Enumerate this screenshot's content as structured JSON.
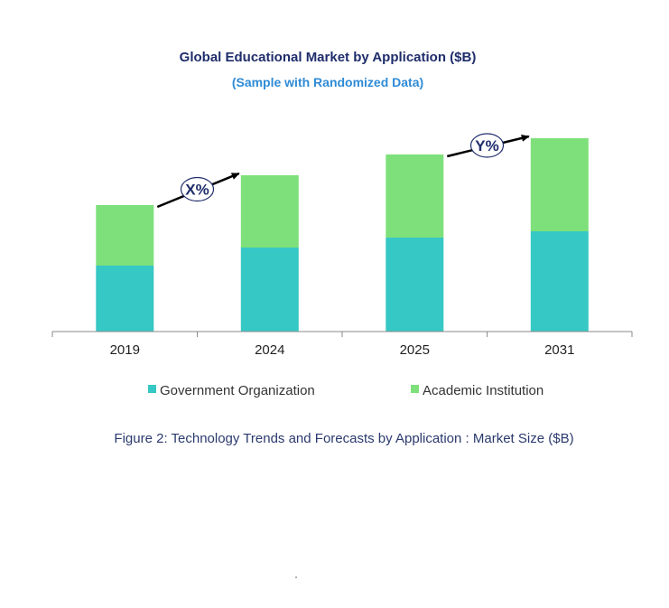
{
  "chart_data": {
    "type": "bar",
    "stacked": true,
    "title": "Global Educational Market by Application ($B)",
    "subtitle": "(Sample with Randomized Data)",
    "categories": [
      "2019",
      "2024",
      "2025",
      "2031"
    ],
    "series": [
      {
        "name": "Government Organization",
        "color": "#36c8c4",
        "values": [
          73,
          93,
          104,
          111
        ]
      },
      {
        "name": "Academic Institution",
        "color": "#7ee07a",
        "values": [
          67,
          80,
          92,
          103
        ]
      }
    ],
    "ylim": [
      0,
      240
    ],
    "grid": false,
    "legend_position": "bottom",
    "annotations": [
      {
        "label": "X%",
        "from": "2019",
        "to": "2024"
      },
      {
        "label": "Y%",
        "from": "2025",
        "to": "2031"
      }
    ],
    "caption": "Figure 2: Technology  Trends  and Forecasts by Application : Market Size ($B)"
  }
}
